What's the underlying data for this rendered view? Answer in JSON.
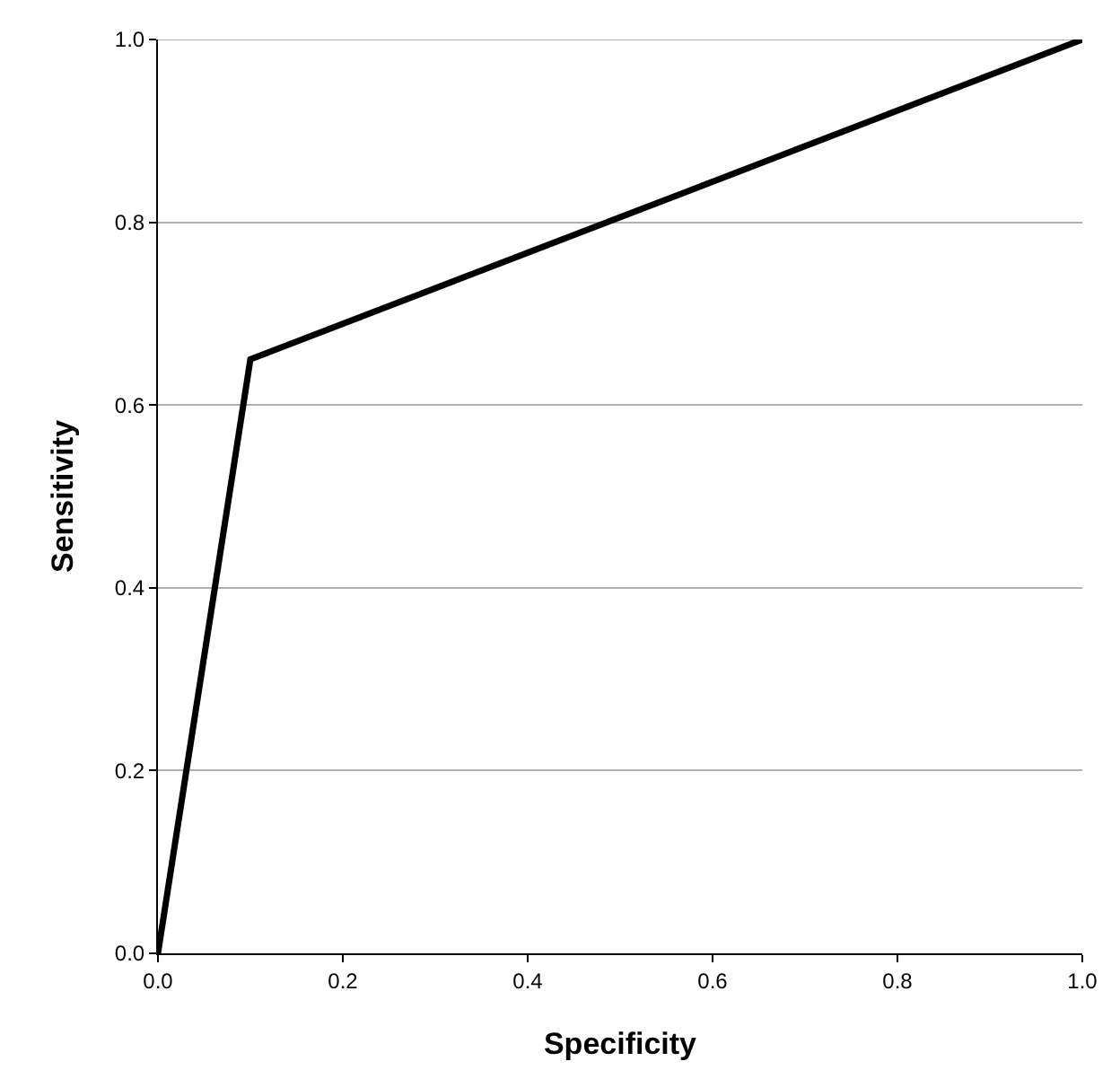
{
  "chart_data": {
    "type": "line",
    "xlabel": "Specificity",
    "ylabel": "Sensitivity",
    "x": [
      0,
      0.1,
      1
    ],
    "series": [
      {
        "color": "#000000",
        "values": [
          0,
          0.65,
          1
        ]
      }
    ],
    "xlim": [
      0,
      1
    ],
    "ylim": [
      0,
      1
    ],
    "xticks": [
      {
        "value": 0,
        "label": "0.0"
      },
      {
        "value": 0.2,
        "label": "0.2"
      },
      {
        "value": 0.4,
        "label": "0.4"
      },
      {
        "value": 0.6,
        "label": "0.6"
      },
      {
        "value": 0.8,
        "label": "0.8"
      },
      {
        "value": 1,
        "label": "1.0"
      }
    ],
    "yticks": [
      {
        "value": 0,
        "label": "0.0"
      },
      {
        "value": 0.2,
        "label": "0.2"
      },
      {
        "value": 0.4,
        "label": "0.4"
      },
      {
        "value": 0.6,
        "label": "0.6"
      },
      {
        "value": 0.8,
        "label": "0.8"
      },
      {
        "value": 1,
        "label": "1.0"
      }
    ],
    "grid": "y",
    "marker": "none",
    "line_style": "solid"
  }
}
